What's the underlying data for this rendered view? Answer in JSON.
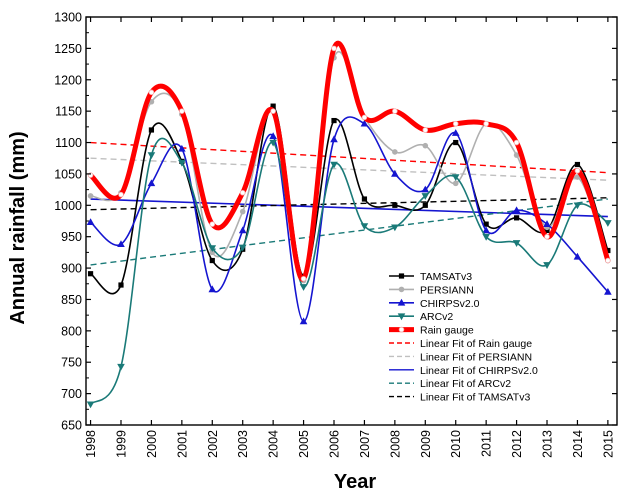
{
  "chart_data": {
    "type": "line",
    "xlabel": "Year",
    "ylabel": "Annual rainfall (mm)",
    "x": [
      1998,
      1999,
      2000,
      2001,
      2002,
      2003,
      2004,
      2005,
      2006,
      2007,
      2008,
      2009,
      2010,
      2011,
      2012,
      2013,
      2014,
      2015
    ],
    "x_tick_labels": [
      "1998",
      "1999",
      "2000",
      "2001",
      "2002",
      "2003",
      "2004",
      "2005",
      "2006",
      "2007",
      "2008",
      "2009",
      "2010",
      "2011",
      "2012",
      "2013",
      "2014",
      "2015"
    ],
    "xlim": [
      1997.85,
      2015.3
    ],
    "ylim": [
      650,
      1300
    ],
    "y_ticks": [
      650,
      700,
      750,
      800,
      850,
      900,
      950,
      1000,
      1050,
      1100,
      1150,
      1200,
      1250,
      1300
    ],
    "y_tick_labels": [
      "650",
      "700",
      "750",
      "800",
      "850",
      "900",
      "950",
      "1000",
      "1050",
      "1100",
      "1150",
      "1200",
      "1250",
      "1300"
    ],
    "grid": false,
    "legend_position": "bottom-right",
    "series": [
      {
        "name": "TAMSATv3",
        "color": "#000000",
        "marker": "square",
        "values": [
          891,
          873,
          1120,
          1070,
          912,
          930,
          1158,
          887,
          1135,
          1010,
          1000,
          1000,
          1100,
          970,
          980,
          960,
          1065,
          928
        ]
      },
      {
        "name": "PERSIANN",
        "color": "#b0b0b0",
        "marker": "circle",
        "values": [
          1015,
          1020,
          1165,
          1145,
          925,
          990,
          1150,
          880,
          1235,
          1140,
          1085,
          1095,
          1035,
          1130,
          1080,
          965,
          1045,
          912
        ]
      },
      {
        "name": "CHIRPSv2.0",
        "color": "#1515d0",
        "marker": "triangle-up",
        "values": [
          973,
          938,
          1035,
          1090,
          866,
          960,
          1110,
          815,
          1105,
          1130,
          1050,
          1025,
          1115,
          960,
          992,
          970,
          918,
          862
        ]
      },
      {
        "name": "ARCv2",
        "color": "#1a7a78",
        "marker": "triangle-down",
        "values": [
          683,
          743,
          1080,
          1068,
          932,
          933,
          1100,
          870,
          1065,
          967,
          965,
          1015,
          1045,
          950,
          940,
          905,
          1000,
          972
        ]
      },
      {
        "name": "Rain gauge",
        "color": "#ff0000",
        "marker": "circle",
        "values": [
          1048,
          1017,
          1180,
          1150,
          970,
          1020,
          1150,
          883,
          1250,
          1140,
          1150,
          1120,
          1130,
          1130,
          1100,
          950,
          1055,
          912
        ]
      }
    ],
    "trend_lines": [
      {
        "name": "Linear Fit of Rain gauge",
        "color": "#ff0000",
        "dash": "dash",
        "start": 1100,
        "end": 1052
      },
      {
        "name": "Linear Fit of PERSIANN",
        "color": "#c0c0c0",
        "dash": "dash",
        "start": 1075,
        "end": 1040
      },
      {
        "name": "Linear Fit of CHIRPSv2.0",
        "color": "#1515d0",
        "dash": "solid",
        "start": 1010,
        "end": 982
      },
      {
        "name": "Linear Fit of ARCv2",
        "color": "#1a7a78",
        "dash": "dash",
        "start": 905,
        "end": 1010
      },
      {
        "name": "Linear Fit of TAMSATv3",
        "color": "#000000",
        "dash": "dash",
        "start": 993,
        "end": 1012
      }
    ]
  }
}
